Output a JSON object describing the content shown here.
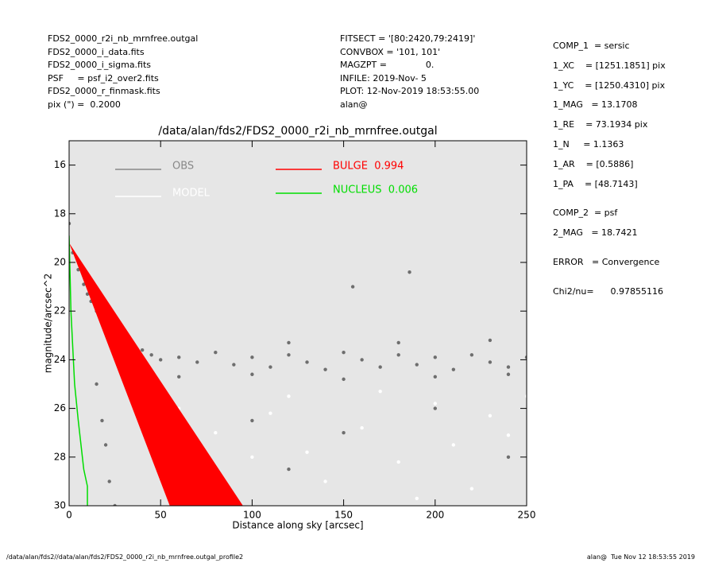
{
  "header_left": [
    "FDS2_0000_r2i_nb_mrnfree.outgal",
    "FDS2_0000_i_data.fits",
    "FDS2_0000_i_sigma.fits",
    "PSF     = psf_i2_over2.fits",
    "FDS2_0000_r_finmask.fits",
    "pix (\") =  0.2000"
  ],
  "header_middle": [
    "FITSECT = '[80:2420,79:2419]'",
    "CONVBOX = '101, 101'",
    "MAGZPT =              0.",
    "INFILE: 2019-Nov- 5",
    "PLOT: 12-Nov-2019 18:53:55.00",
    "alan@"
  ],
  "right_panel": [
    [
      "COMP_1  = sersic",
      "1_XC    = [1251.1851] pix",
      "1_YC    = [1250.4310] pix",
      "1_MAG   = 13.1708",
      "1_RE    = 73.1934 pix",
      "1_N     = 1.1363",
      "1_AR    = [0.5886]",
      "1_PA    = [48.7143]"
    ],
    [
      "COMP_2  = psf",
      "2_MAG   = 18.7421"
    ],
    [
      "ERROR   = Convergence"
    ],
    [
      "Chi2/nu=      0.97855116"
    ]
  ],
  "footer_left": "/data/alan/fds2//data/alan/fds2/FDS2_0000_r2i_nb_mrnfree.outgal_profile2",
  "footer_right": "alan@  Tue Nov 12 18:53:55 2019",
  "chart_data": {
    "type": "scatter",
    "title": "/data/alan/fds2/FDS2_0000_r2i_nb_mrnfree.outgal",
    "x_label": "Distance along sky [arcsec]",
    "y_label": "magnitude/arcsec^2",
    "xlim": [
      0,
      250
    ],
    "ylim": [
      30,
      15
    ],
    "xticks": [
      0,
      50,
      100,
      150,
      200,
      250
    ],
    "yticks": [
      16,
      18,
      20,
      22,
      24,
      26,
      28,
      30
    ],
    "background": "#e6e6e6",
    "series": [
      {
        "name": "OBS",
        "color": "#6e6e6e",
        "mode": "points",
        "x": [
          0,
          2,
          5,
          8,
          10,
          12,
          15,
          18,
          20,
          22,
          25,
          28,
          30,
          35,
          40,
          45,
          50,
          60,
          70,
          80,
          90,
          100,
          110,
          120,
          130,
          140,
          150,
          160,
          170,
          180,
          190,
          200,
          210,
          220,
          230,
          240,
          250,
          155,
          186,
          20,
          22,
          25,
          15,
          18,
          60,
          100,
          150,
          200,
          240,
          120,
          180,
          230,
          100,
          150,
          200,
          240,
          120
        ],
        "values": [
          18.4,
          19.6,
          20.3,
          20.9,
          21.3,
          21.6,
          22.0,
          22.4,
          22.6,
          22.8,
          23.0,
          23.1,
          23.3,
          23.5,
          23.6,
          23.8,
          24.0,
          23.9,
          24.1,
          23.7,
          24.2,
          23.9,
          24.3,
          23.8,
          24.1,
          24.4,
          23.7,
          24.0,
          24.3,
          23.8,
          24.2,
          23.9,
          24.4,
          23.8,
          24.1,
          24.3,
          23.9,
          21.0,
          20.4,
          27.5,
          29.0,
          30.0,
          25.0,
          26.5,
          24.7,
          24.6,
          24.8,
          24.7,
          24.6,
          23.3,
          23.3,
          23.2,
          26.5,
          27.0,
          26.0,
          28.0,
          28.5
        ]
      },
      {
        "name": "MODEL",
        "color": "#ffffff",
        "mode": "points",
        "x": [
          60,
          80,
          100,
          120,
          140,
          160,
          180,
          200,
          220,
          240,
          250,
          70,
          110,
          130,
          170,
          190,
          210,
          230
        ],
        "values": [
          26.0,
          27.0,
          28.0,
          25.5,
          29.0,
          26.8,
          28.2,
          25.8,
          29.3,
          27.1,
          25.5,
          29.5,
          26.2,
          27.8,
          25.3,
          29.7,
          27.5,
          26.3
        ]
      },
      {
        "name": "BULGE  0.994",
        "color": "#ff0000",
        "mode": "area",
        "x": [
          0,
          55,
          95
        ],
        "values": [
          19.2,
          30,
          30
        ]
      },
      {
        "name": "NUCLEUS  0.006",
        "color": "#00dd00",
        "mode": "line",
        "x": [
          0,
          1,
          3,
          5,
          8,
          10,
          10
        ],
        "values": [
          18.9,
          22,
          25,
          26.5,
          28.5,
          29.2,
          30
        ]
      }
    ]
  }
}
